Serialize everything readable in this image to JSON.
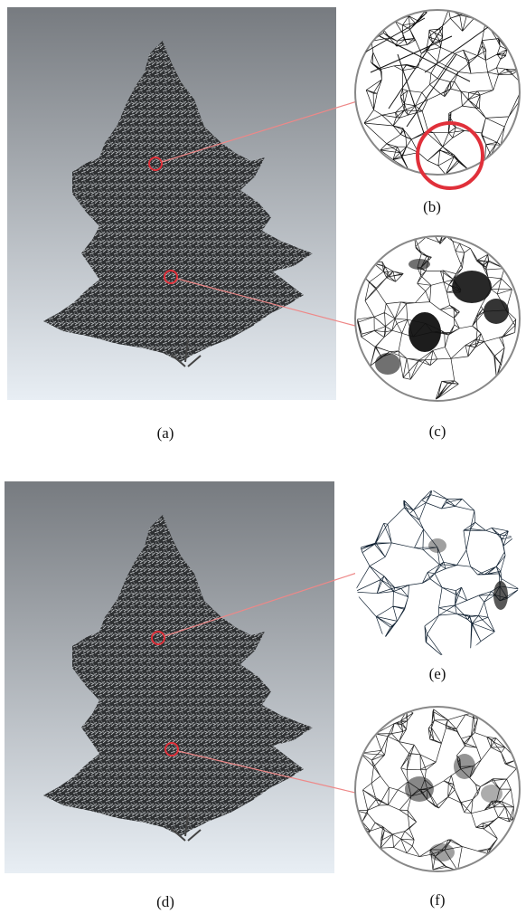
{
  "labels": [
    "(a)",
    "(b)",
    "(c)",
    "(d)",
    "(e)",
    "(f)"
  ]
}
